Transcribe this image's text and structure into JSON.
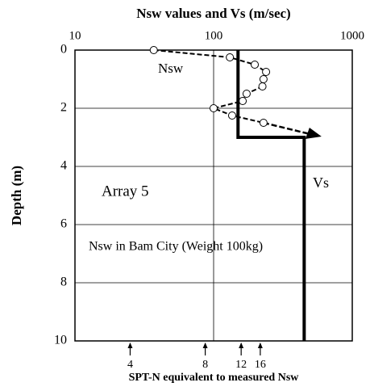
{
  "chart_data": {
    "type": "line",
    "title": "Nsw values and Vs (m/sec)",
    "ylabel": "Depth (m)",
    "x2label": "SPT-N  equivalent to measured Nsw",
    "xscale": "log",
    "xlim": [
      10,
      1000
    ],
    "xticks": [
      10,
      100,
      1000
    ],
    "ylim": [
      0,
      10
    ],
    "yticks": [
      0,
      2,
      4,
      6,
      8,
      10
    ],
    "y_inverted": true,
    "grid": true,
    "x2ticks": [
      {
        "value": 25,
        "label": "4"
      },
      {
        "value": 87,
        "label": "8"
      },
      {
        "value": 158,
        "label": "12"
      },
      {
        "value": 217,
        "label": "16"
      }
    ],
    "annotations": [
      "Nsw",
      "Array 5",
      "Vs",
      "Nsw in Bam City (Weight 100kg)"
    ],
    "series": [
      {
        "name": "Nsw",
        "color": "#000000",
        "markers": true,
        "x": [
          37,
          131,
          198,
          239,
          229,
          225,
          173,
          162,
          100,
          136,
          229
        ],
        "values": [
          0,
          0.25,
          0.5,
          0.75,
          1.0,
          1.25,
          1.5,
          1.75,
          2.0,
          2.25,
          2.5
        ]
      },
      {
        "name": "Vs",
        "color": "#000000",
        "markers": false,
        "x": [
          150,
          150,
          450,
          450
        ],
        "values": [
          0,
          3,
          3,
          10
        ]
      }
    ]
  }
}
